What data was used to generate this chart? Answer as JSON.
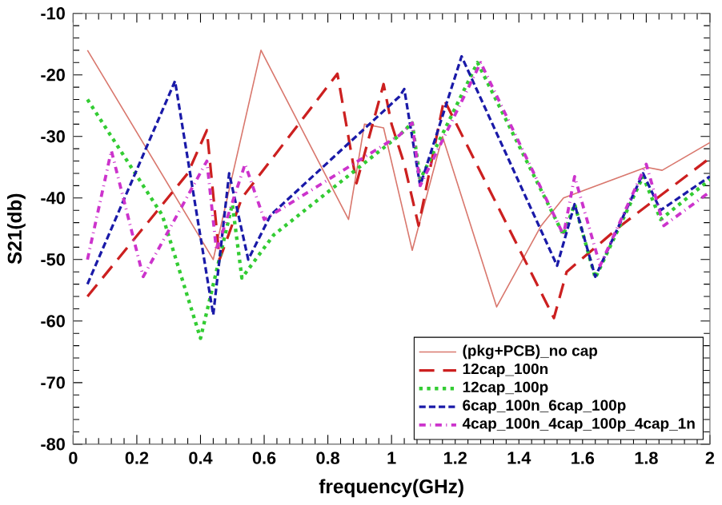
{
  "chart_data": {
    "type": "line",
    "xlabel": "frequency(GHz)",
    "ylabel": "S21(db)",
    "xlim": [
      0,
      2
    ],
    "ylim": [
      -80,
      -10
    ],
    "xticks": [
      0,
      0.2,
      0.4,
      0.6,
      0.8,
      1,
      1.2,
      1.4,
      1.6,
      1.8,
      2
    ],
    "yticks": [
      -80,
      -70,
      -60,
      -50,
      -40,
      -30,
      -20,
      -10
    ],
    "grid": false,
    "legend": "bottom right",
    "marker": "none",
    "series": [
      {
        "name": "(pkg+PCB)_no cap",
        "color": "#d9786e",
        "line_style": "solid",
        "x": [
          0.045,
          0.44,
          0.59,
          0.865,
          0.915,
          0.975,
          1.065,
          1.16,
          1.33,
          1.47,
          1.54,
          1.8,
          1.85,
          2.0
        ],
        "values": [
          -16,
          -50,
          -16,
          -43.5,
          -28,
          -28.6,
          -48.5,
          -30,
          -57.7,
          -44.5,
          -40,
          -35,
          -35.5,
          -31
        ]
      },
      {
        "name": "12cap_100n",
        "color": "#cc2020",
        "line_style": "dashed",
        "x": [
          0.045,
          0.36,
          0.42,
          0.46,
          0.53,
          0.83,
          0.89,
          0.975,
          1.0,
          1.04,
          1.085,
          1.165,
          1.51,
          1.55,
          1.72,
          2.0
        ],
        "values": [
          -56,
          -36,
          -29,
          -50,
          -40,
          -19.8,
          -37.6,
          -21.5,
          -28,
          -34.5,
          -44.5,
          -24,
          -59.5,
          -52,
          -44.5,
          -33.5
        ]
      },
      {
        "name": "12cap_100p",
        "color": "#33cc33",
        "line_style": "dotted",
        "x": [
          0.045,
          0.28,
          0.4,
          0.5,
          0.53,
          0.63,
          1.025,
          1.065,
          1.09,
          1.27,
          1.54,
          1.575,
          1.64,
          1.79,
          1.845,
          2.0
        ],
        "values": [
          -24,
          -42.8,
          -62.8,
          -41,
          -53,
          -46,
          -29.8,
          -27.8,
          -37,
          -18,
          -46,
          -41,
          -53,
          -36.5,
          -43.5,
          -37
        ]
      },
      {
        "name": "6cap_100n_6cap_100p",
        "color": "#1a1aa8",
        "line_style": "dashed",
        "x": [
          0.045,
          0.32,
          0.44,
          0.49,
          0.55,
          0.62,
          1.025,
          1.04,
          1.09,
          1.22,
          1.52,
          1.575,
          1.64,
          1.79,
          1.845,
          2.0
        ],
        "values": [
          -54,
          -21,
          -59,
          -36,
          -50,
          -42.8,
          -23.5,
          -22.3,
          -38,
          -17,
          -51,
          -41,
          -52.8,
          -36,
          -42,
          -36.5
        ]
      },
      {
        "name": "4cap_100n_4cap_100p_4cap_1n",
        "color": "#cc33cc",
        "line_style": "dashdot",
        "x": [
          0.045,
          0.12,
          0.22,
          0.42,
          0.45,
          0.54,
          0.6,
          1.025,
          1.065,
          1.09,
          1.28,
          1.54,
          1.575,
          1.655,
          1.8,
          1.855,
          2.0
        ],
        "values": [
          -50,
          -32.3,
          -52.8,
          -34,
          -48.5,
          -34.5,
          -43.5,
          -29.8,
          -27.8,
          -38,
          -18,
          -46,
          -36.5,
          -51,
          -34.5,
          -44.5,
          -39
        ]
      }
    ]
  }
}
